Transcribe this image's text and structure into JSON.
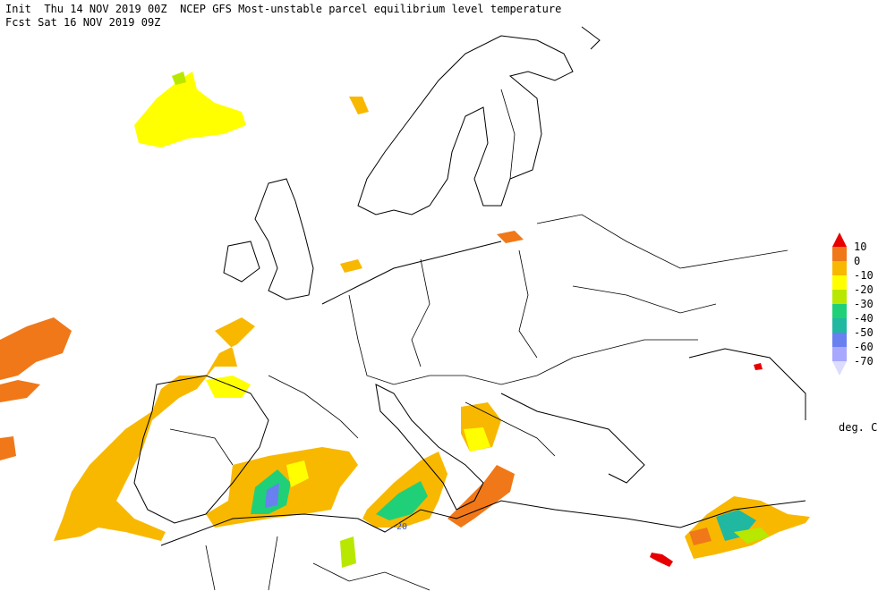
{
  "header": {
    "line1": "Init  Thu 14 NOV 2019 00Z  NCEP GFS Most-unstable parcel equilibrium level temperature",
    "line2": "Fcst Sat 16 NOV 2019 09Z"
  },
  "legend": {
    "unit": "deg. C",
    "labels": [
      10,
      0,
      -10,
      -20,
      -30,
      -40,
      -50,
      -60,
      -70
    ],
    "colors": [
      "#e80000",
      "#f07818",
      "#f8b800",
      "#ffff00",
      "#b8e800",
      "#20d078",
      "#20b8a0",
      "#6880f0",
      "#a8a8ff",
      "#dcdcff"
    ]
  },
  "map": {
    "contour_labels": [
      "-20"
    ]
  }
}
